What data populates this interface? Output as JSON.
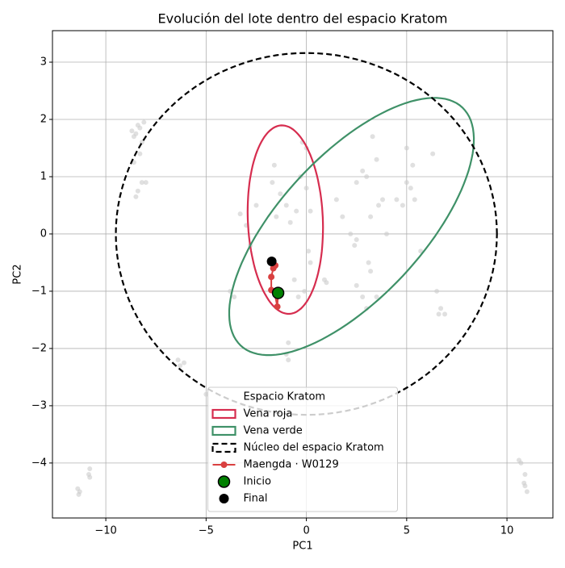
{
  "chart_data": {
    "type": "scatter",
    "title": "Evolución del lote dentro del espacio Kratom",
    "xlabel": "PC1",
    "ylabel": "PC2",
    "xlim": [
      -12.66,
      12.29
    ],
    "ylim": [
      -4.96,
      3.55
    ],
    "xticks": [
      {
        "value": -10,
        "label": "−10"
      },
      {
        "value": -5,
        "label": "−5"
      },
      0,
      5,
      10
    ],
    "yticks": [
      {
        "value": -4,
        "label": "−4"
      },
      {
        "value": -3,
        "label": "−3"
      },
      {
        "value": -2,
        "label": "−2"
      },
      {
        "value": -1,
        "label": "−1"
      },
      0,
      1,
      2,
      3
    ],
    "grid": true,
    "legend_loc": "lower center",
    "legend_title": "Espacio Kratom",
    "background": {
      "color": "#cccccc",
      "x": [
        -8.7,
        -8.5,
        -8.3,
        -8.1,
        -8.6,
        -8.2,
        -8.4,
        -8.2,
        -8.4,
        -8.5,
        -8.0,
        -8.6,
        -8.3,
        -11.4,
        -11.3,
        -11.35,
        -10.8,
        -10.85,
        -10.8,
        -6.4,
        -6.1,
        -6.3,
        -5.0,
        -3.8,
        -3.6,
        -3.3,
        -3.0,
        -2.8,
        -2.5,
        -1.5,
        -1.0,
        -0.8,
        -0.5,
        -0.3,
        0,
        0.2,
        -0.2,
        0,
        -1.6,
        -1.7,
        -1.3,
        0.1,
        0.2,
        -0.6,
        -0.4,
        -0.9,
        -0.1,
        0.9,
        1.0,
        -1.0,
        -0.9,
        1.5,
        1.8,
        2.2,
        2.4,
        2.5,
        2.8,
        3.0,
        3.3,
        3.5,
        3.8,
        3.2,
        3.6,
        3.1,
        3.2,
        2.5,
        2.8,
        3.0,
        3.5,
        2.5,
        4.0,
        4.5,
        4.8,
        5.0,
        5.3,
        5.2,
        5.0,
        5.4,
        6.3,
        6.5,
        6.7,
        6.9,
        6.6,
        5.7,
        10.6,
        10.7,
        10.9,
        10.85,
        11.0,
        10.9
      ],
      "y": [
        1.8,
        1.75,
        1.85,
        1.95,
        1.7,
        1.6,
        1.9,
        0.9,
        0.75,
        0.65,
        0.9,
        1.25,
        1.4,
        -4.45,
        -4.5,
        -4.55,
        -4.1,
        -4.2,
        -4.25,
        -2.2,
        -2.25,
        -2.3,
        -2.8,
        -1.0,
        -1.1,
        0.35,
        0.15,
        -0.2,
        0.5,
        0.3,
        0.5,
        0.2,
        0.4,
        1.0,
        0.8,
        0.4,
        1.6,
        1.5,
        1.2,
        0.9,
        0.7,
        -0.3,
        -0.5,
        -0.8,
        -1.1,
        -1.9,
        -1.0,
        -0.8,
        -0.85,
        -2.1,
        -2.2,
        0.6,
        0.3,
        0,
        -0.2,
        0.9,
        1.1,
        1.0,
        1.7,
        1.3,
        0.6,
        0.3,
        0.5,
        -0.5,
        -0.65,
        -0.9,
        -1.1,
        -1.3,
        -1.1,
        -0.1,
        0,
        0.6,
        0.5,
        1.5,
        1.2,
        0.8,
        0.9,
        0.6,
        1.4,
        -1.0,
        -1.3,
        -1.4,
        -1.4,
        -0.3,
        -3.95,
        -4.0,
        -4.2,
        -4.35,
        -4.5,
        -4.4
      ]
    },
    "ellipses": [
      {
        "name": "Vena roja",
        "color": "#d62d4f",
        "center": [
          -1.05,
          0.25
        ],
        "semi_axes": [
          1.9,
          1.62
        ],
        "angle": -17
      },
      {
        "name": "Vena verde",
        "color": "#3f9168",
        "center": [
          2.25,
          0.13
        ],
        "semi_axes": [
          6.3,
          1.6
        ],
        "angle": 15
      },
      {
        "name": "Núcleo del espacio Kratom",
        "color": "#000000",
        "dashed": true,
        "center": [
          0,
          0
        ],
        "semi_axes": [
          9.5,
          3.16
        ],
        "angle": 0
      }
    ],
    "series": [
      {
        "name": "Maengda · W0129",
        "color": "#d94040",
        "x": [
          -1.41,
          -1.45,
          -1.6,
          -1.75,
          -1.75,
          -1.65,
          -1.55,
          -1.73
        ],
        "y": [
          -1.03,
          -1.27,
          -1.0,
          -0.98,
          -0.75,
          -0.6,
          -0.55,
          -0.48
        ]
      }
    ],
    "markers": [
      {
        "name": "Inicio",
        "color": "#008000",
        "x": -1.41,
        "y": -1.03
      },
      {
        "name": "Final",
        "color": "#000000",
        "x": -1.73,
        "y": -0.48
      }
    ]
  }
}
